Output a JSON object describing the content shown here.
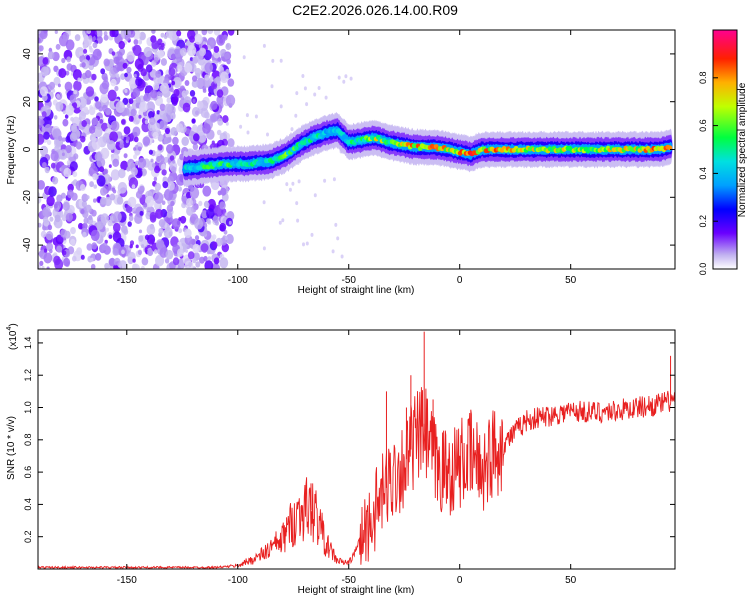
{
  "title": "C2E2.2026.026.14.00.R09",
  "chart_data": [
    {
      "type": "heatmap",
      "xlabel": "Height of straight line (km)",
      "ylabel": "Frequency (Hz)",
      "xlim": [
        -190,
        97
      ],
      "ylim": [
        -50,
        50
      ],
      "xticks": [
        -150,
        -100,
        -50,
        0,
        50
      ],
      "yticks": [
        -40,
        -20,
        0,
        20,
        40
      ],
      "colorbar": {
        "label": "Normalized spectral amplitude",
        "range": [
          0.0,
          1.0
        ],
        "ticks": [
          "0.0",
          "0.2",
          "0.4",
          "0.6",
          "0.8"
        ],
        "tick_values": [
          0.0,
          0.2,
          0.4,
          0.6,
          0.8
        ]
      },
      "ridge": {
        "x": [
          -124,
          -115,
          -105,
          -95,
          -85,
          -78,
          -72,
          -66,
          -60,
          -55,
          -50,
          -44,
          -38,
          -32,
          -26,
          -20,
          -12,
          -5,
          0,
          5,
          10,
          20,
          40,
          60,
          80,
          90,
          95
        ],
        "freq": [
          -8,
          -7,
          -6,
          -6,
          -5,
          -2,
          2,
          5,
          7,
          8,
          3,
          4,
          5,
          3,
          2,
          1,
          1,
          0,
          -1,
          -2,
          0,
          0,
          0,
          0,
          0,
          0,
          1
        ],
        "amplitude": [
          0.45,
          0.55,
          0.55,
          0.5,
          0.5,
          0.6,
          0.55,
          0.5,
          0.45,
          0.4,
          0.5,
          0.55,
          0.7,
          0.65,
          0.75,
          0.8,
          0.85,
          0.75,
          0.8,
          0.85,
          0.8,
          0.8,
          0.7,
          0.7,
          0.75,
          0.85,
          0.8
        ]
      },
      "noise_region": {
        "x_from": -190,
        "x_to": -107,
        "level": 0.25
      }
    },
    {
      "type": "line",
      "xlabel": "Height of straight line (km)",
      "ylabel": "SNR (10 * v/v)",
      "scale_label": "(x10",
      "scale_exponent": "4",
      "xlim": [
        -190,
        97
      ],
      "ylim": [
        0,
        1.48
      ],
      "xticks": [
        -150,
        -100,
        -50,
        0,
        50
      ],
      "yticks": [
        0.2,
        0.4,
        0.6,
        0.8,
        1.0,
        1.2,
        1.4
      ],
      "series": [
        {
          "name": "SNR",
          "color": "#e82020",
          "x": [
            -190,
            -170,
            -150,
            -130,
            -110,
            -100,
            -90,
            -80,
            -75,
            -70,
            -65,
            -60,
            -55,
            -52,
            -50,
            -48,
            -45,
            -40,
            -35,
            -30,
            -25,
            -20,
            -16,
            -10,
            -5,
            0,
            5,
            10,
            15,
            20,
            25,
            30,
            40,
            50,
            60,
            70,
            80,
            90,
            97
          ],
          "values": [
            0.01,
            0.01,
            0.01,
            0.01,
            0.01,
            0.02,
            0.08,
            0.18,
            0.3,
            0.38,
            0.35,
            0.15,
            0.05,
            0.04,
            0.04,
            0.08,
            0.18,
            0.3,
            0.45,
            0.58,
            0.65,
            0.8,
            0.85,
            0.62,
            0.6,
            0.65,
            0.7,
            0.62,
            0.72,
            0.78,
            0.85,
            0.92,
            0.95,
            0.98,
            0.97,
            0.98,
            1.0,
            1.02,
            1.05
          ]
        }
      ],
      "spikes": [
        {
          "x": -16,
          "y": 1.47
        },
        {
          "x": -22,
          "y": 1.2
        },
        {
          "x": -33,
          "y": 1.1
        },
        {
          "x": -24,
          "y": 1.0
        },
        {
          "x": -67,
          "y": 0.53
        },
        {
          "x": -78,
          "y": 0.32
        },
        {
          "x": -12,
          "y": 1.05
        },
        {
          "x": 95,
          "y": 1.32
        }
      ]
    }
  ]
}
